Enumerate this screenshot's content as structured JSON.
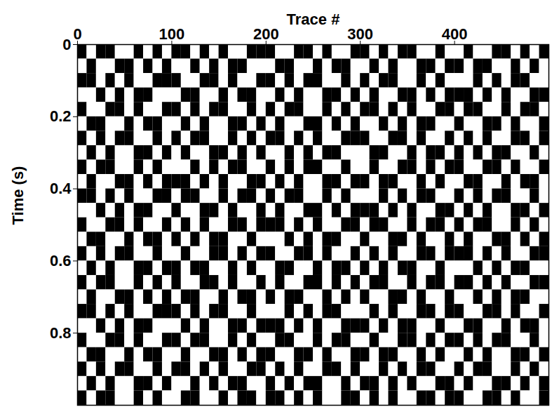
{
  "chart_data": {
    "type": "heatmap",
    "x_label": "Trace #",
    "y_label": "Time (s)",
    "xlim": [
      0,
      500
    ],
    "ylim": [
      0,
      1
    ],
    "xticks": [
      0,
      100,
      200,
      300,
      400
    ],
    "yticks": [
      0,
      0.2,
      0.4,
      0.6,
      0.8
    ],
    "trace_edges": [
      0,
      10,
      20,
      30,
      40,
      50,
      60,
      70,
      80,
      90,
      100,
      110,
      120,
      130,
      140,
      150,
      160,
      170,
      180,
      190,
      200,
      210,
      220,
      230,
      240,
      250,
      260,
      270,
      280,
      290,
      300,
      310,
      320,
      330,
      340,
      350,
      360,
      370,
      380,
      390,
      400,
      410,
      420,
      430,
      440,
      450,
      460,
      470,
      480,
      490,
      500
    ],
    "time_edges": [
      0,
      0.04,
      0.08,
      0.12,
      0.16,
      0.2,
      0.24,
      0.28,
      0.32,
      0.36,
      0.4,
      0.44,
      0.48,
      0.52,
      0.56,
      0.6,
      0.64,
      0.68,
      0.72,
      0.76,
      0.8,
      0.84,
      0.88,
      0.92,
      0.96,
      1
    ],
    "cells": [
      [
        1,
        -1,
        1,
        1,
        -1,
        -1,
        1,
        -1,
        1,
        -1,
        1,
        1,
        -1,
        1,
        -1,
        1,
        -1,
        -1,
        1,
        1,
        1,
        -1,
        -1,
        1,
        1,
        -1,
        1,
        -1,
        -1,
        1,
        1,
        -1,
        1,
        -1,
        1,
        1,
        -1,
        -1,
        1,
        -1,
        -1,
        1,
        -1,
        -1,
        1,
        1,
        -1,
        1,
        -1,
        1
      ],
      [
        -1,
        1,
        -1,
        -1,
        1,
        1,
        -1,
        1,
        -1,
        1,
        -1,
        -1,
        1,
        -1,
        1,
        -1,
        1,
        1,
        -1,
        -1,
        -1,
        1,
        1,
        -1,
        -1,
        1,
        -1,
        1,
        1,
        -1,
        -1,
        1,
        -1,
        1,
        -1,
        -1,
        1,
        1,
        -1,
        1,
        1,
        -1,
        1,
        1,
        -1,
        -1,
        1,
        -1,
        1,
        -1
      ],
      [
        1,
        1,
        -1,
        1,
        -1,
        1,
        -1,
        -1,
        1,
        1,
        1,
        -1,
        -1,
        1,
        1,
        -1,
        1,
        -1,
        -1,
        1,
        1,
        -1,
        1,
        -1,
        1,
        1,
        -1,
        -1,
        1,
        -1,
        1,
        -1,
        1,
        1,
        -1,
        -1,
        1,
        -1,
        1,
        -1,
        -1,
        -1,
        1,
        -1,
        1,
        -1,
        1,
        1,
        -1,
        -1
      ],
      [
        -1,
        -1,
        1,
        -1,
        1,
        -1,
        1,
        1,
        -1,
        -1,
        -1,
        1,
        1,
        -1,
        -1,
        1,
        -1,
        1,
        1,
        -1,
        -1,
        1,
        -1,
        1,
        -1,
        -1,
        1,
        1,
        -1,
        1,
        -1,
        1,
        -1,
        -1,
        1,
        1,
        -1,
        1,
        -1,
        1,
        1,
        1,
        -1,
        1,
        -1,
        1,
        -1,
        -1,
        1,
        1
      ],
      [
        1,
        -1,
        -1,
        1,
        1,
        -1,
        1,
        -1,
        -1,
        1,
        1,
        -1,
        1,
        -1,
        1,
        1,
        -1,
        -1,
        1,
        -1,
        1,
        -1,
        1,
        1,
        -1,
        -1,
        1,
        -1,
        1,
        -1,
        1,
        1,
        -1,
        1,
        -1,
        1,
        -1,
        -1,
        1,
        1,
        -1,
        1,
        1,
        -1,
        -1,
        1,
        -1,
        1,
        1,
        -1
      ],
      [
        -1,
        1,
        1,
        -1,
        -1,
        1,
        -1,
        1,
        1,
        -1,
        -1,
        1,
        -1,
        1,
        -1,
        -1,
        1,
        1,
        -1,
        1,
        -1,
        1,
        -1,
        -1,
        1,
        1,
        -1,
        1,
        -1,
        1,
        -1,
        -1,
        1,
        -1,
        1,
        -1,
        1,
        1,
        -1,
        -1,
        1,
        -1,
        -1,
        1,
        1,
        -1,
        1,
        -1,
        -1,
        1
      ],
      [
        1,
        -1,
        1,
        -1,
        1,
        1,
        -1,
        -1,
        1,
        -1,
        1,
        -1,
        1,
        1,
        -1,
        -1,
        1,
        -1,
        1,
        -1,
        1,
        1,
        -1,
        1,
        -1,
        1,
        -1,
        -1,
        1,
        1,
        1,
        -1,
        -1,
        1,
        1,
        -1,
        1,
        -1,
        -1,
        1,
        -1,
        1,
        -1,
        1,
        -1,
        -1,
        1,
        1,
        -1,
        1
      ],
      [
        -1,
        1,
        -1,
        1,
        -1,
        -1,
        1,
        1,
        -1,
        1,
        -1,
        1,
        -1,
        -1,
        1,
        1,
        -1,
        1,
        -1,
        1,
        -1,
        -1,
        1,
        -1,
        1,
        -1,
        1,
        1,
        -1,
        -1,
        -1,
        1,
        1,
        -1,
        -1,
        1,
        -1,
        1,
        1,
        -1,
        1,
        -1,
        1,
        -1,
        1,
        1,
        -1,
        -1,
        1,
        -1
      ],
      [
        1,
        -1,
        1,
        1,
        -1,
        -1,
        1,
        -1,
        1,
        -1,
        -1,
        -1,
        1,
        -1,
        1,
        -1,
        1,
        1,
        -1,
        -1,
        1,
        -1,
        1,
        -1,
        1,
        1,
        -1,
        -1,
        1,
        -1,
        -1,
        1,
        -1,
        -1,
        1,
        1,
        -1,
        1,
        -1,
        1,
        1,
        -1,
        -1,
        1,
        1,
        -1,
        1,
        -1,
        -1,
        1
      ],
      [
        -1,
        1,
        -1,
        -1,
        1,
        1,
        -1,
        1,
        -1,
        1,
        1,
        1,
        -1,
        1,
        -1,
        1,
        -1,
        -1,
        1,
        1,
        -1,
        1,
        -1,
        1,
        -1,
        -1,
        1,
        1,
        -1,
        1,
        1,
        -1,
        1,
        1,
        -1,
        -1,
        1,
        -1,
        1,
        -1,
        -1,
        1,
        1,
        -1,
        -1,
        1,
        -1,
        1,
        1,
        -1
      ],
      [
        1,
        1,
        -1,
        1,
        -1,
        1,
        -1,
        -1,
        1,
        1,
        -1,
        1,
        1,
        -1,
        -1,
        1,
        -1,
        1,
        1,
        -1,
        1,
        -1,
        1,
        1,
        -1,
        -1,
        1,
        -1,
        1,
        -1,
        -1,
        -1,
        1,
        -1,
        1,
        -1,
        1,
        1,
        -1,
        -1,
        1,
        -1,
        1,
        -1,
        1,
        1,
        -1,
        -1,
        1,
        -1
      ],
      [
        -1,
        -1,
        1,
        -1,
        1,
        -1,
        1,
        1,
        -1,
        -1,
        1,
        -1,
        -1,
        1,
        1,
        -1,
        1,
        -1,
        -1,
        1,
        -1,
        1,
        -1,
        -1,
        1,
        1,
        -1,
        1,
        -1,
        1,
        1,
        1,
        -1,
        1,
        -1,
        1,
        -1,
        -1,
        1,
        1,
        -1,
        1,
        -1,
        1,
        -1,
        -1,
        1,
        1,
        -1,
        1
      ],
      [
        1,
        -1,
        -1,
        1,
        1,
        -1,
        1,
        -1,
        -1,
        1,
        -1,
        1,
        -1,
        1,
        -1,
        -1,
        1,
        1,
        -1,
        1,
        1,
        1,
        -1,
        1,
        -1,
        1,
        -1,
        -1,
        1,
        1,
        -1,
        1,
        1,
        -1,
        -1,
        1,
        -1,
        1,
        1,
        -1,
        1,
        -1,
        1,
        1,
        -1,
        -1,
        1,
        -1,
        1,
        -1
      ],
      [
        -1,
        1,
        1,
        -1,
        -1,
        1,
        -1,
        1,
        1,
        -1,
        1,
        -1,
        1,
        -1,
        1,
        1,
        -1,
        -1,
        1,
        -1,
        -1,
        -1,
        1,
        -1,
        1,
        -1,
        1,
        1,
        -1,
        -1,
        1,
        -1,
        -1,
        1,
        1,
        -1,
        1,
        -1,
        -1,
        1,
        -1,
        1,
        -1,
        -1,
        1,
        1,
        -1,
        1,
        -1,
        1
      ],
      [
        1,
        -1,
        1,
        -1,
        1,
        1,
        -1,
        -1,
        1,
        -1,
        -1,
        1,
        -1,
        -1,
        1,
        1,
        -1,
        1,
        -1,
        1,
        1,
        -1,
        -1,
        1,
        1,
        -1,
        1,
        -1,
        -1,
        1,
        -1,
        1,
        -1,
        1,
        -1,
        -1,
        1,
        1,
        -1,
        1,
        1,
        1,
        -1,
        1,
        -1,
        1,
        -1,
        -1,
        1,
        1
      ],
      [
        -1,
        1,
        -1,
        1,
        -1,
        -1,
        1,
        1,
        -1,
        1,
        1,
        -1,
        1,
        1,
        -1,
        -1,
        1,
        -1,
        1,
        -1,
        -1,
        1,
        1,
        -1,
        -1,
        1,
        -1,
        1,
        1,
        -1,
        1,
        -1,
        1,
        -1,
        1,
        1,
        -1,
        -1,
        1,
        -1,
        -1,
        -1,
        1,
        -1,
        1,
        -1,
        1,
        1,
        -1,
        -1
      ],
      [
        1,
        -1,
        1,
        1,
        -1,
        -1,
        1,
        -1,
        1,
        -1,
        1,
        -1,
        -1,
        1,
        1,
        -1,
        1,
        -1,
        -1,
        1,
        -1,
        1,
        -1,
        -1,
        1,
        1,
        -1,
        1,
        -1,
        1,
        -1,
        1,
        1,
        -1,
        -1,
        1,
        -1,
        1,
        1,
        -1,
        1,
        1,
        -1,
        1,
        -1,
        1,
        -1,
        -1,
        1,
        1
      ],
      [
        -1,
        1,
        -1,
        -1,
        1,
        1,
        -1,
        1,
        -1,
        1,
        -1,
        1,
        1,
        -1,
        -1,
        1,
        -1,
        1,
        1,
        -1,
        1,
        -1,
        1,
        1,
        -1,
        -1,
        1,
        -1,
        1,
        -1,
        1,
        -1,
        -1,
        1,
        1,
        -1,
        1,
        -1,
        -1,
        1,
        -1,
        -1,
        1,
        -1,
        1,
        -1,
        1,
        1,
        -1,
        -1
      ],
      [
        1,
        1,
        -1,
        1,
        -1,
        1,
        -1,
        -1,
        1,
        1,
        1,
        -1,
        1,
        -1,
        1,
        1,
        -1,
        -1,
        1,
        -1,
        -1,
        -1,
        1,
        -1,
        1,
        -1,
        1,
        1,
        -1,
        -1,
        -1,
        1,
        -1,
        1,
        -1,
        -1,
        1,
        1,
        -1,
        1,
        1,
        -1,
        -1,
        1,
        1,
        -1,
        1,
        -1,
        -1,
        1
      ],
      [
        -1,
        -1,
        1,
        -1,
        1,
        -1,
        1,
        1,
        -1,
        -1,
        -1,
        1,
        -1,
        1,
        -1,
        -1,
        1,
        1,
        -1,
        1,
        1,
        1,
        -1,
        1,
        -1,
        1,
        -1,
        -1,
        1,
        1,
        1,
        -1,
        1,
        -1,
        1,
        1,
        -1,
        -1,
        1,
        -1,
        -1,
        1,
        1,
        -1,
        -1,
        1,
        -1,
        1,
        1,
        -1
      ],
      [
        1,
        -1,
        -1,
        1,
        1,
        -1,
        1,
        -1,
        -1,
        1,
        1,
        -1,
        1,
        1,
        -1,
        -1,
        1,
        -1,
        1,
        -1,
        -1,
        1,
        1,
        -1,
        -1,
        1,
        -1,
        1,
        1,
        -1,
        -1,
        1,
        -1,
        -1,
        1,
        1,
        -1,
        1,
        -1,
        1,
        1,
        -1,
        1,
        -1,
        1,
        1,
        -1,
        -1,
        1,
        -1
      ],
      [
        -1,
        1,
        1,
        -1,
        -1,
        1,
        -1,
        1,
        1,
        -1,
        -1,
        1,
        -1,
        -1,
        1,
        1,
        -1,
        1,
        -1,
        1,
        1,
        -1,
        -1,
        1,
        1,
        -1,
        1,
        -1,
        -1,
        1,
        1,
        -1,
        1,
        1,
        -1,
        -1,
        1,
        -1,
        1,
        -1,
        -1,
        1,
        -1,
        1,
        -1,
        -1,
        1,
        1,
        -1,
        1
      ],
      [
        1,
        -1,
        1,
        -1,
        1,
        1,
        -1,
        -1,
        1,
        -1,
        1,
        1,
        -1,
        1,
        -1,
        1,
        -1,
        -1,
        1,
        1,
        -1,
        1,
        -1,
        1,
        -1,
        -1,
        1,
        1,
        -1,
        1,
        -1,
        -1,
        1,
        -1,
        1,
        -1,
        1,
        1,
        -1,
        -1,
        1,
        -1,
        1,
        1,
        -1,
        -1,
        1,
        -1,
        1,
        -1
      ],
      [
        -1,
        1,
        -1,
        1,
        -1,
        -1,
        1,
        1,
        -1,
        1,
        -1,
        -1,
        1,
        -1,
        1,
        -1,
        1,
        1,
        -1,
        -1,
        1,
        -1,
        1,
        -1,
        1,
        1,
        -1,
        -1,
        1,
        -1,
        1,
        1,
        -1,
        1,
        -1,
        1,
        -1,
        -1,
        1,
        1,
        -1,
        1,
        -1,
        -1,
        1,
        1,
        -1,
        1,
        -1,
        1
      ],
      [
        1,
        -1,
        1,
        1,
        -1,
        -1,
        1,
        -1,
        1,
        -1,
        -1,
        1,
        1,
        -1,
        -1,
        1,
        -1,
        1,
        1,
        -1,
        1,
        1,
        -1,
        1,
        -1,
        1,
        -1,
        -1,
        1,
        1,
        -1,
        1,
        -1,
        1,
        -1,
        -1,
        1,
        1,
        -1,
        1,
        1,
        -1,
        -1,
        1,
        1,
        -1,
        1,
        -1,
        -1,
        1
      ]
    ]
  }
}
